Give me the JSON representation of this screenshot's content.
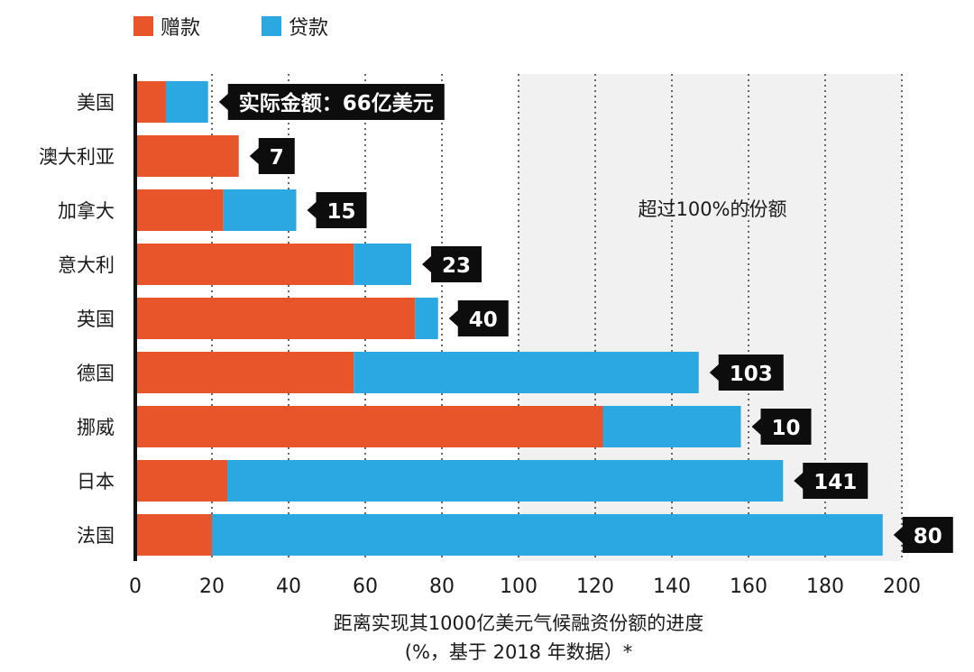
{
  "chart_data": {
    "type": "bar",
    "orientation": "horizontal",
    "stacked": true,
    "categories": [
      "美国",
      "澳大利亚",
      "加拿大",
      "意大利",
      "英国",
      "德国",
      "挪威",
      "日本",
      "法国"
    ],
    "series": [
      {
        "name": "赠款",
        "color": "#e8552a",
        "values": [
          8,
          27,
          23,
          57,
          73,
          57,
          122,
          24,
          20
        ]
      },
      {
        "name": "贷款",
        "color": "#2aa8df",
        "values": [
          11,
          0,
          19,
          15,
          6,
          90,
          36,
          145,
          175
        ]
      }
    ],
    "callouts": [
      "实际金额：66亿美元",
      "7",
      "15",
      "23",
      "40",
      "103",
      "10",
      "141",
      "80"
    ],
    "annotation": "超过100%的份额",
    "xlim": [
      0,
      200
    ],
    "xticks": [
      0,
      20,
      40,
      60,
      80,
      100,
      120,
      140,
      160,
      180,
      200
    ],
    "xlabel": "距离实现其1000亿美元气候融资份额的进度",
    "xlabel_sub": "(%，基于 2018 年数据）*",
    "legend_position": "top-left",
    "shaded_region_from": 100,
    "grid": "vertical-dotted"
  }
}
